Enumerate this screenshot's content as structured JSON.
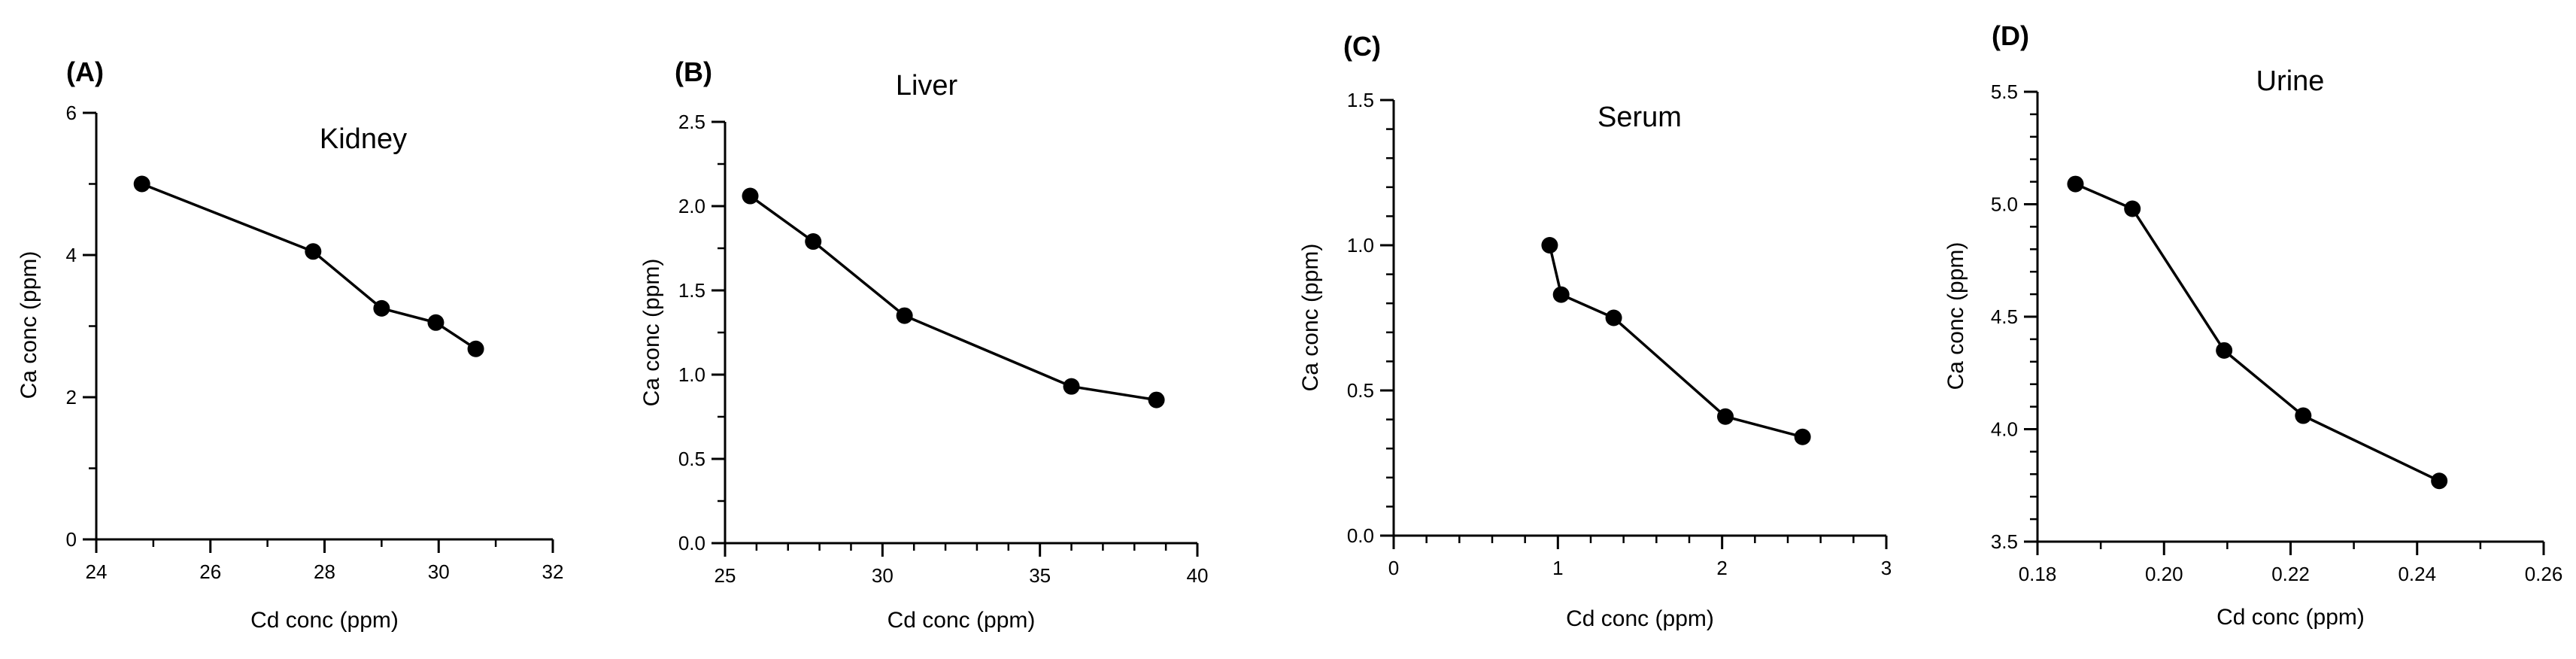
{
  "chart_data": [
    {
      "type": "line",
      "panel": "(A)",
      "title": "Kidney",
      "xlabel": "Cd conc (ppm)",
      "ylabel": "Ca conc (ppm)",
      "xlim": [
        24,
        32
      ],
      "ylim": [
        0,
        6
      ],
      "x_major_ticks": [
        24,
        26,
        28,
        30,
        32
      ],
      "x_minor_step": 1,
      "y_major_ticks": [
        0,
        2,
        4,
        6
      ],
      "y_minor_step": 1,
      "x_tick_decimals": 0,
      "y_tick_decimals": 0,
      "points": [
        {
          "x": 24.8,
          "y": 5.0
        },
        {
          "x": 27.8,
          "y": 4.05
        },
        {
          "x": 29.0,
          "y": 3.25
        },
        {
          "x": 29.95,
          "y": 3.05
        },
        {
          "x": 30.65,
          "y": 2.68
        }
      ]
    },
    {
      "type": "line",
      "panel": "(B)",
      "title": "Liver",
      "xlabel": "Cd conc (ppm)",
      "ylabel": "Ca conc (ppm)",
      "xlim": [
        25,
        40
      ],
      "ylim": [
        0,
        2.5
      ],
      "x_major_ticks": [
        25,
        30,
        35,
        40
      ],
      "x_minor_step": 1,
      "y_major_ticks": [
        0,
        0.5,
        1.0,
        1.5,
        2.0,
        2.5
      ],
      "y_minor_step": 0.25,
      "x_tick_decimals": 0,
      "y_tick_decimals": 1,
      "points": [
        {
          "x": 25.8,
          "y": 2.06
        },
        {
          "x": 27.8,
          "y": 1.79
        },
        {
          "x": 30.7,
          "y": 1.35
        },
        {
          "x": 36.0,
          "y": 0.93
        },
        {
          "x": 38.7,
          "y": 0.85
        }
      ]
    },
    {
      "type": "line",
      "panel": "(C)",
      "title": "Serum",
      "xlabel": "Cd conc (ppm)",
      "ylabel": "Ca conc (ppm)",
      "xlim": [
        0,
        3
      ],
      "ylim": [
        0,
        1.5
      ],
      "x_major_ticks": [
        0,
        1,
        2,
        3
      ],
      "x_minor_step": 0.2,
      "y_major_ticks": [
        0,
        0.5,
        1.0,
        1.5
      ],
      "y_minor_step": 0.1,
      "x_tick_decimals": 0,
      "y_tick_decimals": 1,
      "points": [
        {
          "x": 0.95,
          "y": 1.0
        },
        {
          "x": 1.02,
          "y": 0.83
        },
        {
          "x": 1.34,
          "y": 0.75
        },
        {
          "x": 2.02,
          "y": 0.41
        },
        {
          "x": 2.49,
          "y": 0.34
        }
      ]
    },
    {
      "type": "line",
      "panel": "(D)",
      "title": "Urine",
      "xlabel": "Cd conc (ppm)",
      "ylabel": "Ca conc (ppm)",
      "xlim": [
        0.18,
        0.26
      ],
      "ylim": [
        3.5,
        5.5
      ],
      "x_major_ticks": [
        0.18,
        0.2,
        0.22,
        0.24,
        0.26
      ],
      "x_minor_step": 0.01,
      "y_major_ticks": [
        3.5,
        4.0,
        4.5,
        5.0,
        5.5
      ],
      "y_minor_step": 0.1,
      "x_tick_decimals": 2,
      "y_tick_decimals": 1,
      "points": [
        {
          "x": 0.186,
          "y": 5.09
        },
        {
          "x": 0.195,
          "y": 4.98
        },
        {
          "x": 0.2095,
          "y": 4.35
        },
        {
          "x": 0.222,
          "y": 4.06
        },
        {
          "x": 0.2435,
          "y": 3.77
        }
      ]
    }
  ]
}
